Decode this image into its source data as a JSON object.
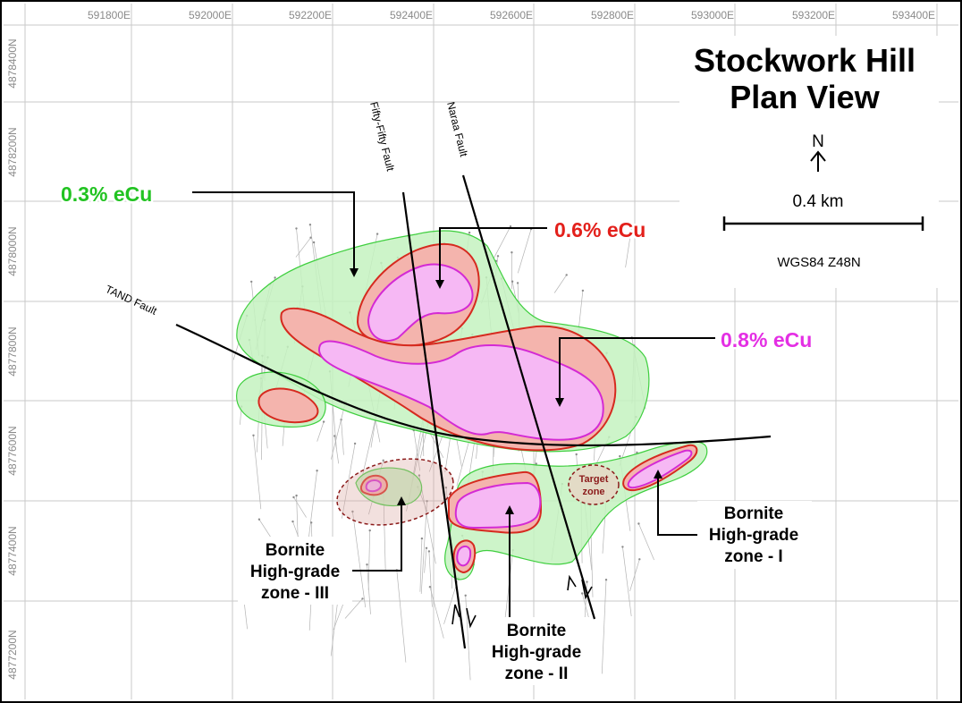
{
  "title": {
    "line1": "Stockwork Hill",
    "line2": "Plan View"
  },
  "north_label": "N",
  "scale_label": "0.4 km",
  "datum_label": "WGS84 Z48N",
  "easting_labels": [
    "591800E",
    "592000E",
    "592200E",
    "592400E",
    "592600E",
    "592800E",
    "593000E",
    "593200E",
    "593400E"
  ],
  "northing_labels": [
    "4878400N",
    "4878200N",
    "4878000N",
    "4877800N",
    "4877600N",
    "4877400N",
    "4877200N"
  ],
  "faults": {
    "fifty_fifty": "Fifty-Fifty Fault",
    "naraa": "Naraa Fault",
    "tand": "TAND Fault"
  },
  "grade_labels": {
    "g03": {
      "text": "0.3% eCu",
      "color": "#22c322"
    },
    "g06": {
      "text": "0.6% eCu",
      "color": "#e3201b"
    },
    "g08": {
      "text": "0.8% eCu",
      "color": "#e42fe4"
    }
  },
  "zones": {
    "zone1": [
      "Bornite",
      "High-grade",
      "zone - I"
    ],
    "zone2": [
      "Bornite",
      "High-grade",
      "zone - II"
    ],
    "zone3": [
      "Bornite",
      "High-grade",
      "zone - III"
    ]
  },
  "target_zone": [
    "Target",
    "zone"
  ],
  "colors": {
    "grid": "#c8c8c8",
    "green_fill": "#c4f2c0",
    "green_stroke": "#3fcf3f",
    "red_fill": "#f4b4ad",
    "red_stroke": "#d62a1f",
    "magenta_fill": "#f6b8f4",
    "magenta_stroke": "#d42ad4"
  }
}
